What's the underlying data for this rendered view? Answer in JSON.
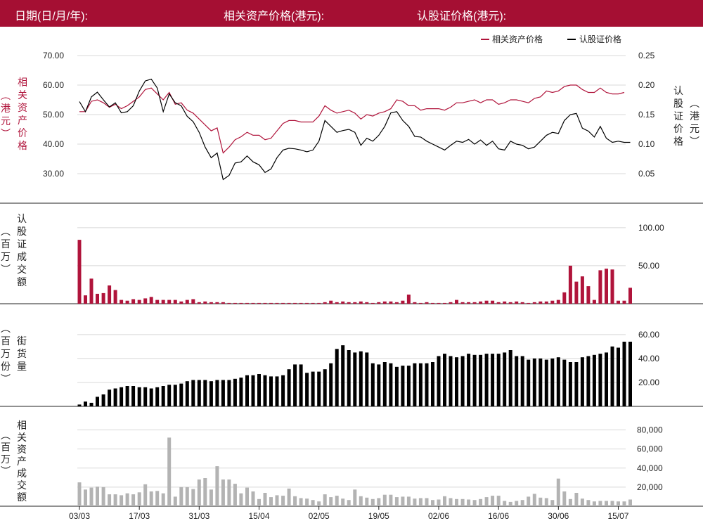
{
  "header": {
    "date_label": "日期(日/月/年):",
    "asset_price_label": "相关资产价格(港元):",
    "warrant_price_label": "认股证价格(港元):"
  },
  "legend": {
    "asset": "相关资产价格",
    "warrant": "认股证价格"
  },
  "colors": {
    "header_bg": "#a50f33",
    "asset_line": "#b0143b",
    "warrant_line": "#000000",
    "turnover_bar": "#b0143b",
    "outstanding_bar": "#000000",
    "asset_turnover_bar": "#b3b3b3"
  },
  "chart_data": {
    "type": "line",
    "x": [
      "03/03",
      "17/03",
      "31/03",
      "15/04",
      "02/05",
      "19/05",
      "02/06",
      "16/06",
      "30/06",
      "15/07"
    ],
    "x_tick_positions": [
      0,
      10,
      20,
      30,
      40,
      50,
      60,
      70,
      80,
      90
    ],
    "price_panel": {
      "left_axis": {
        "label": "相关资产价格 (港元)",
        "ylim": [
          25,
          75
        ],
        "ticks": [
          "30.00",
          "40.00",
          "50.00",
          "60.00",
          "70.00"
        ]
      },
      "right_axis": {
        "label": "认股证价格 (港元)",
        "ylim": [
          0.025,
          0.275
        ],
        "ticks": [
          "0.05",
          "0.10",
          "0.15",
          "0.20",
          "0.25"
        ]
      },
      "legend_position": "top-right",
      "grid": true,
      "series": [
        {
          "name": "相关资产价格",
          "axis": "left",
          "values": [
            51,
            51,
            54.5,
            55,
            54,
            52.5,
            53.5,
            52,
            53,
            54.5,
            56,
            58.5,
            59,
            57,
            55,
            57.5,
            53.5,
            54,
            51.5,
            50.5,
            48.5,
            46.5,
            44.5,
            45.5,
            37,
            39,
            41.5,
            42.5,
            44,
            43,
            43,
            41.5,
            42,
            44.5,
            47,
            48,
            48,
            47.5,
            47.5,
            47.5,
            49.5,
            53,
            51.5,
            50.5,
            51,
            51.5,
            50.5,
            48.5,
            50,
            49.5,
            50.5,
            51,
            52,
            55,
            54.5,
            53,
            53,
            51.5,
            52,
            52,
            52,
            51.5,
            52.5,
            54,
            54,
            54.5,
            55,
            54,
            55,
            55,
            53.5,
            54,
            55,
            55,
            54.5,
            54,
            55.5,
            56,
            58,
            57.5,
            58,
            59.5,
            60,
            60,
            58.5,
            57.5,
            57.5,
            59,
            57.5,
            57,
            57,
            57.5
          ]
        },
        {
          "name": "认股证价格",
          "axis": "right",
          "values": [
            0.172,
            0.155,
            0.18,
            0.188,
            0.175,
            0.163,
            0.17,
            0.153,
            0.155,
            0.165,
            0.19,
            0.207,
            0.21,
            0.195,
            0.155,
            0.185,
            0.17,
            0.165,
            0.147,
            0.138,
            0.12,
            0.095,
            0.077,
            0.085,
            0.04,
            0.047,
            0.068,
            0.07,
            0.08,
            0.07,
            0.065,
            0.052,
            0.058,
            0.077,
            0.09,
            0.093,
            0.092,
            0.09,
            0.087,
            0.09,
            0.105,
            0.14,
            0.13,
            0.12,
            0.123,
            0.125,
            0.12,
            0.098,
            0.11,
            0.105,
            0.115,
            0.13,
            0.153,
            0.155,
            0.14,
            0.13,
            0.113,
            0.112,
            0.105,
            0.1,
            0.095,
            0.09,
            0.098,
            0.105,
            0.103,
            0.108,
            0.1,
            0.107,
            0.098,
            0.105,
            0.092,
            0.09,
            0.105,
            0.1,
            0.098,
            0.092,
            0.095,
            0.105,
            0.115,
            0.12,
            0.118,
            0.14,
            0.15,
            0.152,
            0.127,
            0.122,
            0.112,
            0.13,
            0.11,
            0.103,
            0.105,
            0.103,
            0.103
          ]
        }
      ]
    },
    "warrant_turnover_panel": {
      "type": "bar",
      "label": "认股证成交额 (百万)",
      "ylim": [
        0,
        110
      ],
      "ticks": [
        "50.00",
        "100.00"
      ],
      "values": [
        84,
        11,
        33,
        13,
        14,
        24,
        18,
        5,
        4,
        6,
        5,
        7,
        9,
        5,
        5,
        5,
        5,
        3,
        5,
        6,
        2,
        3,
        2,
        2,
        2,
        1,
        1,
        1,
        1,
        1,
        1,
        1,
        1,
        1,
        1,
        1,
        1,
        1,
        1,
        1,
        1,
        2,
        4,
        2,
        3,
        2,
        2,
        3,
        2,
        1,
        2,
        3,
        3,
        2,
        4,
        12,
        2,
        1,
        2,
        1,
        1,
        1,
        2,
        5,
        2,
        2,
        2,
        3,
        4,
        4,
        2,
        3,
        2,
        3,
        2,
        1,
        2,
        3,
        3,
        4,
        5,
        15,
        50,
        29,
        36,
        23,
        5,
        44,
        46,
        45,
        4,
        4,
        21
      ]
    },
    "outstanding_panel": {
      "type": "bar",
      "label": "街货量 (百万份)",
      "ylim": [
        0,
        64
      ],
      "ticks": [
        "20.00",
        "40.00",
        "60.00"
      ],
      "values": [
        1.5,
        4,
        3,
        8,
        10,
        14,
        15,
        16,
        17,
        17,
        16,
        16,
        15,
        16,
        17,
        18,
        18,
        19,
        21,
        22,
        22,
        22,
        21,
        22,
        22,
        22,
        23,
        24,
        26,
        26,
        27,
        26,
        25,
        25,
        26,
        31,
        35,
        35,
        28,
        29,
        29,
        31,
        36,
        48,
        51,
        47,
        45,
        46,
        45,
        36,
        35,
        37,
        36,
        33,
        34,
        34,
        36,
        36,
        36,
        37,
        42,
        44,
        42,
        41,
        42,
        44,
        43,
        43,
        44,
        44,
        44,
        45,
        47,
        42,
        42,
        39,
        40,
        40,
        39,
        40,
        41,
        39,
        37,
        37,
        41,
        42,
        43,
        44,
        45,
        50,
        49,
        54,
        54
      ]
    },
    "asset_turnover_panel": {
      "type": "bar",
      "label": "相关资产成交额 (百万)",
      "ylim": [
        0,
        90000
      ],
      "ticks": [
        "20,000",
        "40,000",
        "60,000",
        "80,000"
      ],
      "values": [
        25000,
        17500,
        19500,
        20500,
        20000,
        12500,
        12500,
        11500,
        13500,
        12500,
        14500,
        23000,
        15500,
        16000,
        13500,
        72000,
        10000,
        20000,
        20000,
        18000,
        28000,
        29500,
        17500,
        42000,
        28000,
        28000,
        23500,
        13500,
        19500,
        15500,
        7500,
        14000,
        9500,
        11500,
        11000,
        18500,
        10500,
        8500,
        8000,
        6500,
        5000,
        12500,
        9500,
        11000,
        8000,
        6500,
        17500,
        10500,
        9000,
        7500,
        8500,
        12000,
        12000,
        9500,
        10000,
        10000,
        8000,
        8500,
        8500,
        6500,
        7000,
        10500,
        8500,
        7500,
        7500,
        7000,
        6500,
        7500,
        9500,
        11000,
        11000,
        5500,
        4500,
        5500,
        6500,
        10000,
        13000,
        9000,
        8500,
        6500,
        29000,
        15500,
        7500,
        14000,
        8000,
        6500,
        5000,
        5500,
        5500,
        5500,
        5000,
        5000,
        7000
      ]
    }
  }
}
